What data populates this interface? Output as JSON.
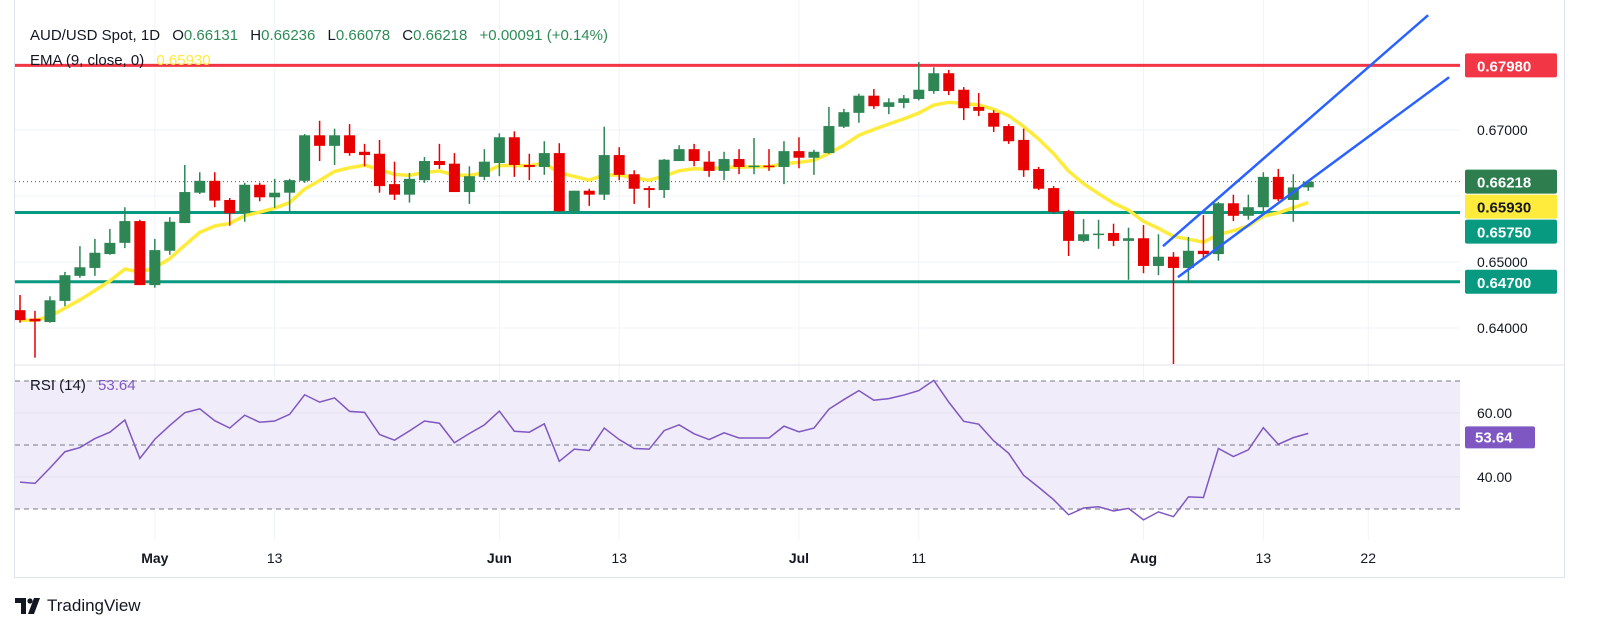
{
  "header": {
    "symbol": "AUD/USD Spot, 1D",
    "o_label": "O",
    "o": "0.66131",
    "h_label": "H",
    "h": "0.66236",
    "l_label": "L",
    "l": "0.66078",
    "c_label": "C",
    "c": "0.66218",
    "change": "+0.00091 (+0.14%)"
  },
  "ema_legend": {
    "label": "EMA (9, close, 0)",
    "value": "0.65930"
  },
  "rsi_legend": {
    "label": "RSI (14)",
    "value": "53.64"
  },
  "branding": {
    "name": "TradingView"
  },
  "colors": {
    "up": "#2e8655",
    "down": "#e60000",
    "ema": "#ffeb3b",
    "resistance": "#f23645",
    "support": "#089981",
    "channel": "#2962ff",
    "rsi": "#7e57c2",
    "rsi_band": "#f0ecf9",
    "last_price": "#2e7d4f"
  },
  "chart_data": {
    "type": "candlestick",
    "symbol": "AUD/USD Spot",
    "interval": "1D",
    "candles_ohlc": [
      [
        0.6427,
        0.645,
        0.6408,
        0.6412
      ],
      [
        0.6414,
        0.6426,
        0.6355,
        0.641
      ],
      [
        0.6409,
        0.6448,
        0.6408,
        0.6442
      ],
      [
        0.6441,
        0.6485,
        0.6433,
        0.648
      ],
      [
        0.6479,
        0.6524,
        0.6476,
        0.6492
      ],
      [
        0.6491,
        0.6535,
        0.6479,
        0.6514
      ],
      [
        0.6512,
        0.655,
        0.6511,
        0.6529
      ],
      [
        0.6529,
        0.6583,
        0.6521,
        0.6562
      ],
      [
        0.6562,
        0.6564,
        0.6465,
        0.6465
      ],
      [
        0.6465,
        0.6535,
        0.6461,
        0.6518
      ],
      [
        0.6517,
        0.6568,
        0.6511,
        0.6561
      ],
      [
        0.6559,
        0.6647,
        0.6559,
        0.6606
      ],
      [
        0.6605,
        0.6636,
        0.6603,
        0.6623
      ],
      [
        0.6623,
        0.6636,
        0.6583,
        0.6593
      ],
      [
        0.6594,
        0.6597,
        0.6555,
        0.6574
      ],
      [
        0.6574,
        0.662,
        0.6561,
        0.6617
      ],
      [
        0.6617,
        0.662,
        0.6592,
        0.6598
      ],
      [
        0.6598,
        0.6626,
        0.6582,
        0.6605
      ],
      [
        0.6605,
        0.6626,
        0.6576,
        0.6624
      ],
      [
        0.6623,
        0.6694,
        0.662,
        0.6692
      ],
      [
        0.6692,
        0.6714,
        0.6653,
        0.6676
      ],
      [
        0.6676,
        0.6702,
        0.6647,
        0.6692
      ],
      [
        0.6692,
        0.6709,
        0.6661,
        0.6665
      ],
      [
        0.6667,
        0.6679,
        0.6645,
        0.6662
      ],
      [
        0.6664,
        0.6685,
        0.6605,
        0.6615
      ],
      [
        0.6618,
        0.6652,
        0.6594,
        0.6602
      ],
      [
        0.6602,
        0.6635,
        0.659,
        0.6626
      ],
      [
        0.6624,
        0.6659,
        0.662,
        0.6653
      ],
      [
        0.6653,
        0.6679,
        0.6641,
        0.6647
      ],
      [
        0.6649,
        0.6665,
        0.6606,
        0.6606
      ],
      [
        0.6606,
        0.6645,
        0.6588,
        0.663
      ],
      [
        0.6629,
        0.6671,
        0.6624,
        0.6652
      ],
      [
        0.665,
        0.6695,
        0.663,
        0.6689
      ],
      [
        0.6689,
        0.6698,
        0.6629,
        0.6647
      ],
      [
        0.6647,
        0.6664,
        0.6624,
        0.6644
      ],
      [
        0.6644,
        0.6683,
        0.6632,
        0.6665
      ],
      [
        0.6665,
        0.668,
        0.6576,
        0.6577
      ],
      [
        0.6577,
        0.6608,
        0.6573,
        0.6608
      ],
      [
        0.6608,
        0.6611,
        0.6585,
        0.6602
      ],
      [
        0.6602,
        0.6705,
        0.6594,
        0.6662
      ],
      [
        0.6662,
        0.6674,
        0.6624,
        0.6632
      ],
      [
        0.6633,
        0.6639,
        0.6588,
        0.6611
      ],
      [
        0.6612,
        0.6615,
        0.6582,
        0.6609
      ],
      [
        0.6609,
        0.6656,
        0.6597,
        0.6655
      ],
      [
        0.6653,
        0.6677,
        0.6653,
        0.6671
      ],
      [
        0.6671,
        0.6679,
        0.6645,
        0.6653
      ],
      [
        0.6652,
        0.6668,
        0.6629,
        0.6638
      ],
      [
        0.6638,
        0.6667,
        0.6624,
        0.6656
      ],
      [
        0.6656,
        0.6671,
        0.6633,
        0.6644
      ],
      [
        0.6645,
        0.6688,
        0.6633,
        0.6646
      ],
      [
        0.6646,
        0.6671,
        0.6638,
        0.6645
      ],
      [
        0.6644,
        0.6683,
        0.6618,
        0.6668
      ],
      [
        0.6668,
        0.6689,
        0.6642,
        0.6658
      ],
      [
        0.6658,
        0.667,
        0.6632,
        0.6667
      ],
      [
        0.6665,
        0.6735,
        0.6664,
        0.6706
      ],
      [
        0.6705,
        0.6732,
        0.6703,
        0.6727
      ],
      [
        0.6726,
        0.6755,
        0.6711,
        0.6752
      ],
      [
        0.6752,
        0.6762,
        0.6732,
        0.6736
      ],
      [
        0.6735,
        0.6748,
        0.6724,
        0.6742
      ],
      [
        0.6741,
        0.6753,
        0.6733,
        0.6748
      ],
      [
        0.6747,
        0.6803,
        0.6745,
        0.6761
      ],
      [
        0.6759,
        0.6795,
        0.6755,
        0.6786
      ],
      [
        0.6786,
        0.6791,
        0.6753,
        0.6759
      ],
      [
        0.6761,
        0.6765,
        0.6715,
        0.6733
      ],
      [
        0.6735,
        0.6756,
        0.6721,
        0.6729
      ],
      [
        0.6726,
        0.673,
        0.6697,
        0.6705
      ],
      [
        0.6706,
        0.6709,
        0.6679,
        0.6683
      ],
      [
        0.6685,
        0.6702,
        0.6629,
        0.6639
      ],
      [
        0.6641,
        0.6644,
        0.6609,
        0.6611
      ],
      [
        0.6612,
        0.6615,
        0.6574,
        0.6576
      ],
      [
        0.6577,
        0.6579,
        0.6509,
        0.6532
      ],
      [
        0.6532,
        0.6565,
        0.653,
        0.6542
      ],
      [
        0.6541,
        0.6564,
        0.652,
        0.6543
      ],
      [
        0.6544,
        0.6558,
        0.6524,
        0.6532
      ],
      [
        0.6532,
        0.6552,
        0.6473,
        0.6536
      ],
      [
        0.6536,
        0.6556,
        0.6483,
        0.6494
      ],
      [
        0.6494,
        0.6542,
        0.648,
        0.6508
      ],
      [
        0.6508,
        0.6515,
        0.6344,
        0.6491
      ],
      [
        0.6491,
        0.6538,
        0.6468,
        0.6517
      ],
      [
        0.6517,
        0.6571,
        0.6505,
        0.6512
      ],
      [
        0.6512,
        0.6591,
        0.6502,
        0.6589
      ],
      [
        0.6589,
        0.6602,
        0.6562,
        0.657
      ],
      [
        0.657,
        0.6602,
        0.6564,
        0.6583
      ],
      [
        0.6583,
        0.6636,
        0.6576,
        0.6629
      ],
      [
        0.6629,
        0.6641,
        0.6592,
        0.6595
      ],
      [
        0.6594,
        0.6633,
        0.6561,
        0.6613
      ],
      [
        0.66131,
        0.66236,
        0.66078,
        0.66218
      ]
    ],
    "ema_period": 9,
    "price_axis_ticks": [
      {
        "value": 0.67,
        "label": "0.67000"
      },
      {
        "value": 0.65,
        "label": "0.65000"
      },
      {
        "value": 0.64,
        "label": "0.64000"
      }
    ],
    "price_gridlines": [
      0.64,
      0.65,
      0.66,
      0.67,
      0.68
    ],
    "horizontal_levels": [
      {
        "value": 0.6798,
        "label": "0.67980",
        "kind": "resistance"
      },
      {
        "value": 0.6575,
        "label": "0.65750",
        "kind": "support"
      },
      {
        "value": 0.647,
        "label": "0.64700",
        "kind": "support"
      }
    ],
    "last_price": {
      "value": 0.66218,
      "label": "0.66218"
    },
    "ema_last": {
      "value": 0.6593,
      "label": "0.65930"
    },
    "ascending_channel": [
      {
        "from": {
          "bar": 76.3,
          "price": 0.6524
        },
        "to": {
          "bar": 94.0,
          "price": 0.6874
        }
      },
      {
        "from": {
          "bar": 77.3,
          "price": 0.6477
        },
        "to": {
          "bar": 95.4,
          "price": 0.678
        }
      }
    ],
    "x_ticks": [
      {
        "bar": 9,
        "label": "May",
        "major": true
      },
      {
        "bar": 17,
        "label": "13",
        "major": false
      },
      {
        "bar": 32,
        "label": "Jun",
        "major": true
      },
      {
        "bar": 40,
        "label": "13",
        "major": false
      },
      {
        "bar": 52,
        "label": "Jul",
        "major": true
      },
      {
        "bar": 60,
        "label": "11",
        "major": false
      },
      {
        "bar": 75,
        "label": "Aug",
        "major": true
      },
      {
        "bar": 83,
        "label": "13",
        "major": false
      },
      {
        "bar": 90,
        "label": "22",
        "major": false
      }
    ],
    "rsi": {
      "period": 14,
      "values": [
        38.4,
        38.0,
        42.8,
        47.9,
        49.2,
        52.0,
        54.0,
        57.8,
        45.8,
        51.8,
        56.1,
        60.1,
        61.3,
        57.6,
        55.3,
        59.3,
        57.1,
        57.5,
        59.6,
        65.7,
        63.4,
        64.7,
        60.5,
        60.2,
        53.3,
        51.5,
        54.4,
        57.5,
        56.8,
        50.7,
        53.6,
        56.3,
        60.6,
        54.3,
        54.0,
        56.6,
        44.9,
        48.7,
        48.3,
        55.3,
        51.7,
        48.9,
        48.7,
        54.5,
        56.3,
        53.5,
        51.7,
        53.8,
        52.2,
        52.2,
        52.2,
        55.9,
        54.1,
        55.3,
        61.2,
        64.2,
        67.0,
        64.0,
        64.5,
        65.6,
        67.0,
        70.2,
        63.4,
        57.4,
        56.5,
        51.3,
        47.4,
        40.5,
        36.8,
        32.9,
        28.2,
        30.3,
        30.7,
        29.4,
        30.2,
        26.6,
        29.1,
        27.6,
        33.8,
        33.6,
        48.9,
        46.4,
        48.5,
        55.4,
        50.2,
        52.3,
        53.64
      ],
      "upper_band": 70,
      "middle_band": 50,
      "lower_band": 30,
      "axis_ticks": [
        {
          "value": 60,
          "label": "60.00"
        },
        {
          "value": 40,
          "label": "40.00"
        }
      ],
      "gridlines": [
        60,
        40
      ],
      "last": {
        "value": 53.64,
        "label": "53.64"
      }
    }
  }
}
